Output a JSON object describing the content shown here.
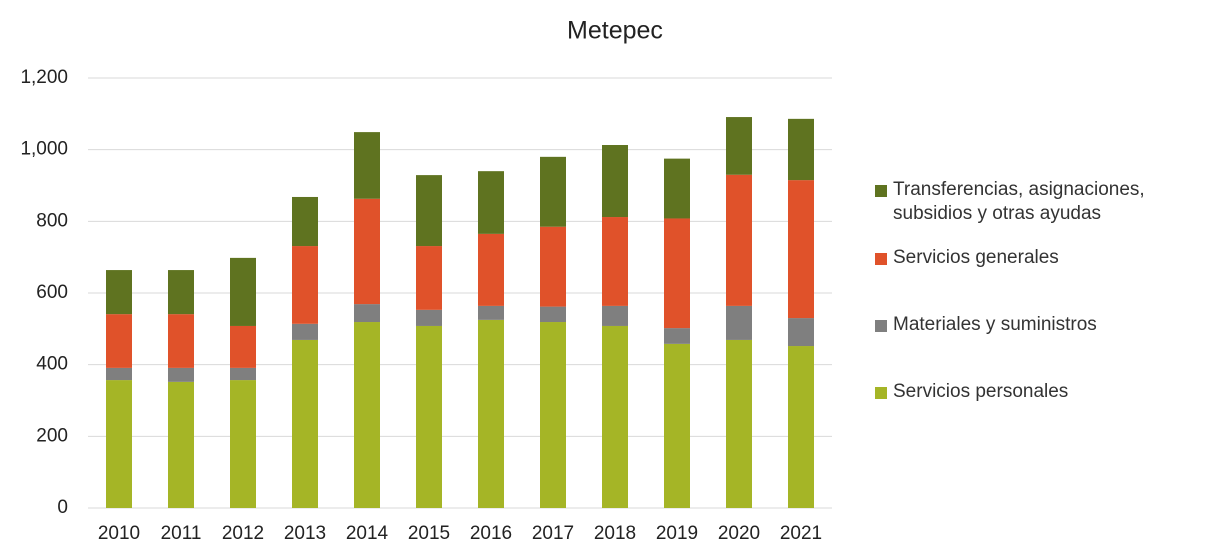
{
  "chart_data": {
    "type": "stacked_bar",
    "title": "Metepec",
    "categories": [
      "2010",
      "2011",
      "2012",
      "2013",
      "2014",
      "2015",
      "2016",
      "2017",
      "2018",
      "2019",
      "2020",
      "2021"
    ],
    "series": [
      {
        "name": "Servicios personales",
        "color": "#a5b526",
        "values": [
          357,
          352,
          357,
          469,
          519,
          508,
          525,
          519,
          508,
          458,
          469,
          452
        ]
      },
      {
        "name": "Materiales y suministros",
        "color": "#7f7f7f",
        "values": [
          34,
          39,
          34,
          45,
          50,
          45,
          39,
          43,
          56,
          44,
          95,
          78
        ]
      },
      {
        "name": "Servicios generales",
        "color": "#e0522a",
        "values": [
          150,
          150,
          117,
          217,
          294,
          178,
          201,
          223,
          248,
          306,
          366,
          385
        ]
      },
      {
        "name": "Transferencias, asignaciones, subsidios y otras ayudas",
        "color": "#5f7320",
        "values": [
          123,
          123,
          190,
          137,
          186,
          198,
          175,
          195,
          201,
          167,
          161,
          171
        ]
      }
    ],
    "ylim": [
      0,
      1200
    ],
    "yticks": [
      0,
      200,
      400,
      600,
      800,
      {
        "value": 1000,
        "label": "1,000"
      },
      {
        "value": 1200,
        "label": "1,200"
      }
    ],
    "grid": true
  }
}
